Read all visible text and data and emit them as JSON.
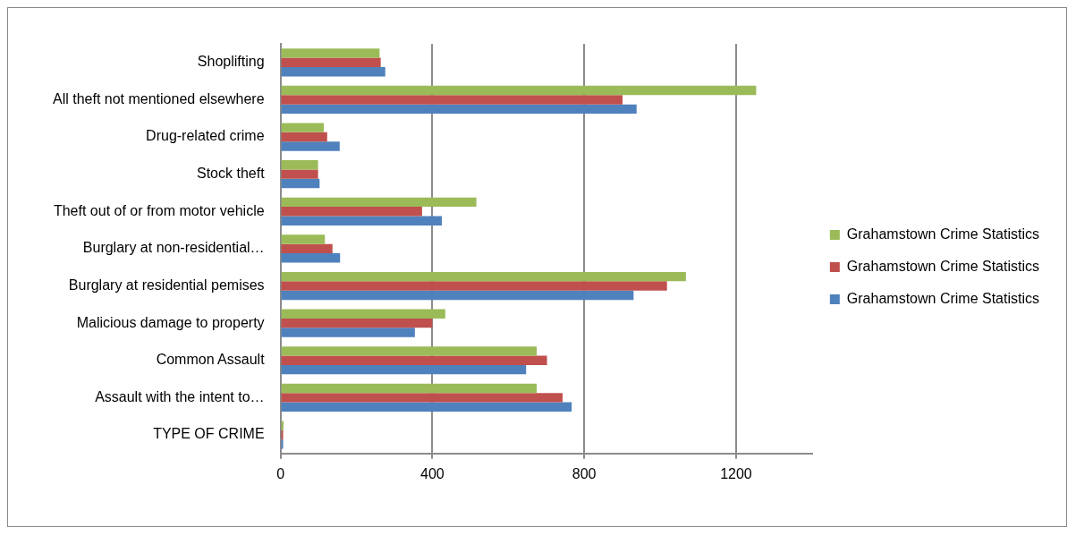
{
  "chart_data": {
    "type": "bar",
    "orientation": "horizontal",
    "categories": [
      "Shoplifting",
      "All theft not mentioned elsewhere",
      "Drug-related crime",
      "Stock theft",
      "Theft out of or from motor vehicle",
      "Burglary at non-residential…",
      "Burglary at residential pemises",
      "Malicious damage to property",
      "Common Assault",
      "Assault with the intent to…",
      "TYPE OF CRIME"
    ],
    "series": [
      {
        "name": "Grahamstown Crime Statistics",
        "color": "#9bbb59",
        "values": [
          261,
          1253,
          114,
          99,
          516,
          117,
          1068,
          434,
          675,
          675,
          8
        ]
      },
      {
        "name": "Grahamstown Crime Statistics",
        "color": "#c0504d",
        "values": [
          264,
          901,
          123,
          99,
          373,
          137,
          1018,
          400,
          702,
          743,
          7
        ]
      },
      {
        "name": "Grahamstown Crime Statistics",
        "color": "#4f81bd",
        "values": [
          276,
          938,
          156,
          103,
          425,
          157,
          930,
          354,
          647,
          767,
          7
        ]
      }
    ],
    "xlim": [
      0,
      1400
    ],
    "xticks": [
      0,
      400,
      800,
      1200
    ],
    "grid": "x",
    "legend": "right"
  }
}
